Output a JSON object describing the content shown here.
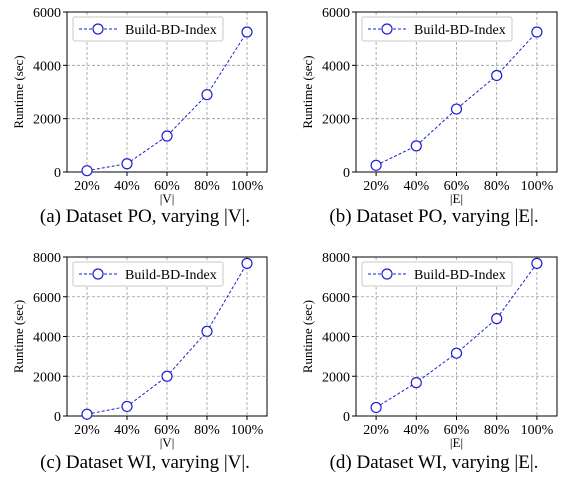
{
  "chart_data": [
    {
      "type": "line",
      "categories": [
        "20%",
        "40%",
        "60%",
        "80%",
        "100%"
      ],
      "series": [
        {
          "name": "Build-BD-Index",
          "values": [
            50,
            310,
            1350,
            2900,
            5250
          ]
        }
      ],
      "xlabel": "|V|",
      "ylabel": "Runtime (sec)",
      "ylim": [
        0,
        6000
      ],
      "yticks": [
        0,
        2000,
        4000,
        6000
      ],
      "caption": "(a) Dataset PO, varying |V|.",
      "grid": true,
      "legend": "top-left"
    },
    {
      "type": "line",
      "categories": [
        "20%",
        "40%",
        "60%",
        "80%",
        "100%"
      ],
      "series": [
        {
          "name": "Build-BD-Index",
          "values": [
            250,
            980,
            2360,
            3620,
            5250
          ]
        }
      ],
      "xlabel": "|E|",
      "ylabel": "Runtime (sec)",
      "ylim": [
        0,
        6000
      ],
      "yticks": [
        0,
        2000,
        4000,
        6000
      ],
      "caption": "(b) Dataset PO, varying |E|.",
      "grid": true,
      "legend": "top-left"
    },
    {
      "type": "line",
      "categories": [
        "20%",
        "40%",
        "60%",
        "80%",
        "100%"
      ],
      "series": [
        {
          "name": "Build-BD-Index",
          "values": [
            90,
            480,
            2000,
            4260,
            7680
          ]
        }
      ],
      "xlabel": "|V|",
      "ylabel": "Runtime (sec)",
      "ylim": [
        0,
        8000
      ],
      "yticks": [
        0,
        2000,
        4000,
        6000,
        8000
      ],
      "caption": "(c) Dataset WI, varying |V|.",
      "grid": true,
      "legend": "top-left"
    },
    {
      "type": "line",
      "categories": [
        "20%",
        "40%",
        "60%",
        "80%",
        "100%"
      ],
      "series": [
        {
          "name": "Build-BD-Index",
          "values": [
            430,
            1680,
            3160,
            4900,
            7680
          ]
        }
      ],
      "xlabel": "|E|",
      "ylabel": "Runtime (sec)",
      "ylim": [
        0,
        8000
      ],
      "yticks": [
        0,
        2000,
        4000,
        6000,
        8000
      ],
      "caption": "(d) Dataset WI, varying |E|.",
      "grid": true,
      "legend": "top-left"
    }
  ],
  "style": {
    "line_color": "#1f1fd0",
    "marker_fill": "#ffffff",
    "grid_color": "#9a9a9a"
  }
}
